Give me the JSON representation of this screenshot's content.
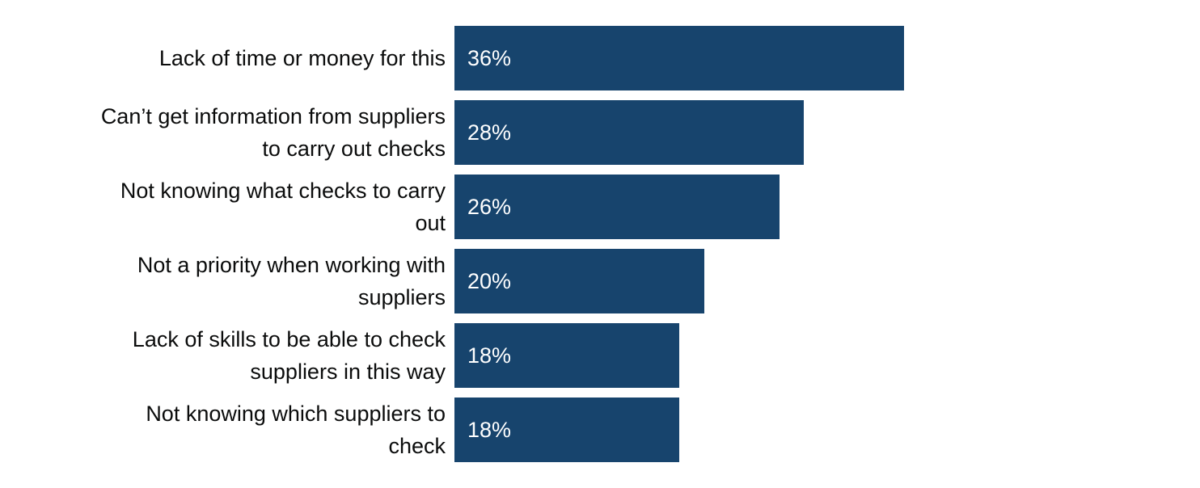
{
  "chart_data": {
    "type": "bar",
    "orientation": "horizontal",
    "categories": [
      "Lack of time or money for this",
      "Can’t get information from suppliers to carry out checks",
      "Not knowing what checks to carry out",
      "Not a priority when working with suppliers",
      "Lack of skills to be able to check suppliers in this way",
      "Not knowing which suppliers to check"
    ],
    "category_lines": [
      [
        "Lack of time or money for this"
      ],
      [
        "Can’t get information from suppliers",
        "to carry out checks"
      ],
      [
        "Not knowing what checks to carry",
        "out"
      ],
      [
        "Not a priority when working with",
        "suppliers"
      ],
      [
        "Lack of skills to be able to check",
        "suppliers in this way"
      ],
      [
        "Not knowing which suppliers to",
        "check"
      ]
    ],
    "values": [
      36,
      28,
      26,
      20,
      18,
      18
    ],
    "value_labels": [
      "36%",
      "28%",
      "26%",
      "20%",
      "18%",
      "18%"
    ],
    "unit": "%",
    "xlim": [
      0,
      59
    ],
    "grid": false,
    "legend": "none",
    "bar_color": "#17446d",
    "label_color": "#0b0c0c",
    "value_label_color": "#ffffff"
  }
}
